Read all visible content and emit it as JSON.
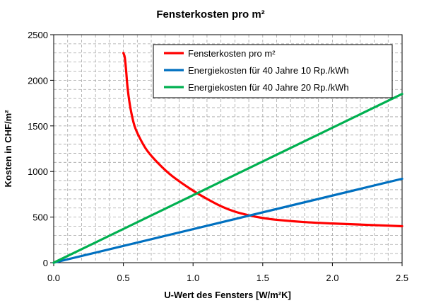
{
  "chart_data": {
    "type": "line",
    "title": "Fensterkosten pro m²",
    "xlabel": "U-Wert des Fensters [W/m²K]",
    "ylabel": "Kosten in CHF/m²",
    "xlim": [
      0,
      2.5
    ],
    "ylim": [
      0,
      2500
    ],
    "x_ticks": [
      "0.0",
      "0.5",
      "1.0",
      "1.5",
      "2.0",
      "2.5"
    ],
    "y_ticks": [
      "0",
      "500",
      "1000",
      "1500",
      "2000",
      "2500"
    ],
    "grid": true,
    "legend_position": "top-right",
    "series": [
      {
        "name": "Fensterkosten pro m²",
        "color": "#ff0000",
        "x": [
          0.5,
          0.51,
          0.52,
          0.53,
          0.55,
          0.58,
          0.62,
          0.67,
          0.75,
          0.85,
          1.0,
          1.1,
          1.2,
          1.3,
          1.4,
          1.5,
          1.6,
          1.8,
          2.0,
          2.2,
          2.5
        ],
        "y": [
          2300,
          2250,
          2100,
          1920,
          1700,
          1500,
          1360,
          1230,
          1090,
          950,
          790,
          700,
          620,
          560,
          520,
          490,
          470,
          445,
          430,
          418,
          400
        ]
      },
      {
        "name": "Energiekosten für 40 Jahre 10 Rp./kWh",
        "color": "#0070c0",
        "x": [
          0.0,
          2.5
        ],
        "y": [
          0,
          920
        ]
      },
      {
        "name": "Energiekosten für 40 Jahre 20 Rp./kWh",
        "color": "#00b050",
        "x": [
          0.0,
          2.5
        ],
        "y": [
          0,
          1850
        ]
      }
    ]
  }
}
